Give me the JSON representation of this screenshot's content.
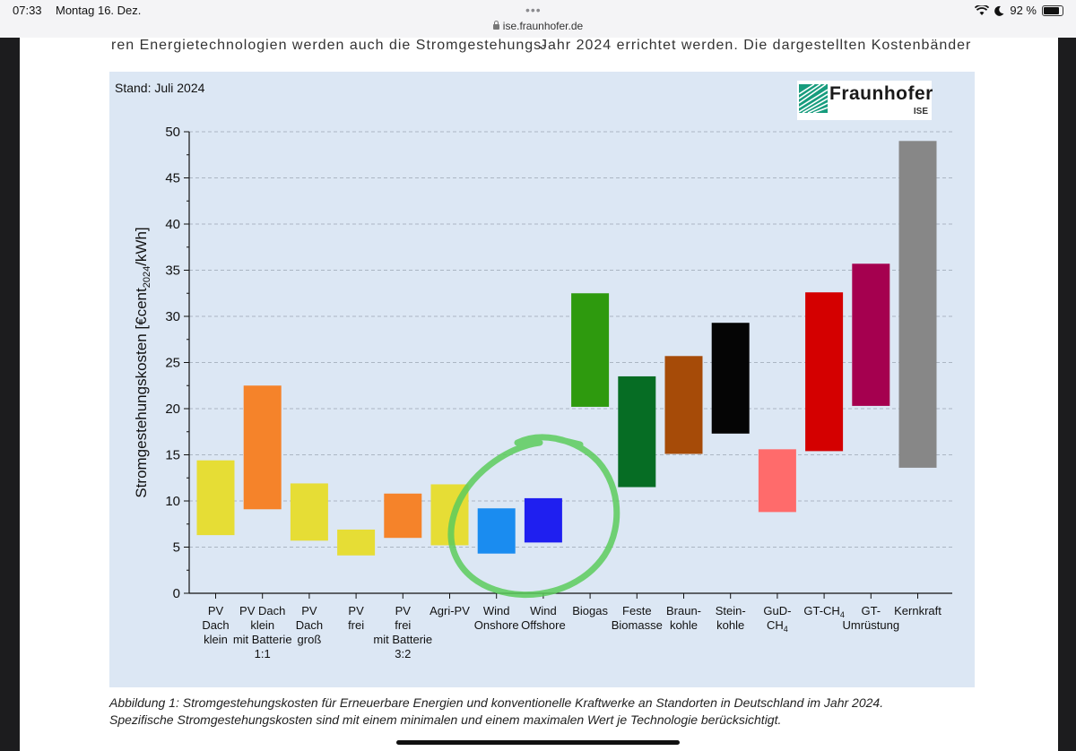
{
  "status_bar": {
    "time": "07:33",
    "date": "Montag 16. Dez.",
    "url": "ise.fraunhofer.de",
    "battery": "92 %",
    "dots": "•••"
  },
  "page": {
    "text_snippet_left": "ren Energietechnologien werden auch die Stromgestehungs-",
    "text_snippet_right": "Jahr 2024 errichtet werden. Die dargestellten Kostenbänder",
    "caption_line1": "Abbildung 1: Stromgestehungskosten für Erneuerbare Energien und konventionelle Kraftwerke an Standorten in Deutschland im Jahr 2024.",
    "caption_line2": "Spezifische Stromgestehungskosten sind mit einem minimalen und einem maximalen Wert je Technologie berücksichtigt."
  },
  "chart_header": {
    "stand": "Stand: Juli 2024",
    "logo_name": "Fraunhofer",
    "logo_sub": "ISE"
  },
  "chart_data": {
    "type": "bar",
    "subtype": "floating-range",
    "title": "",
    "ylabel": "Stromgestehungskosten [€cent2024/kWh]",
    "ylabel_parts": {
      "main": "Stromgestehungskosten [€cent",
      "sub": "2024",
      "end": "/kWh]"
    },
    "xlabel": "",
    "ylim": [
      0,
      50
    ],
    "yticks": [
      0,
      5,
      10,
      15,
      20,
      25,
      30,
      35,
      40,
      45,
      50
    ],
    "grid": true,
    "categories": [
      {
        "label": [
          "PV",
          "Dach",
          "klein"
        ],
        "min": 6.3,
        "max": 14.4,
        "color": "#e6dd35"
      },
      {
        "label": [
          "PV Dach",
          "klein",
          "mit Batterie",
          "1:1"
        ],
        "min": 9.1,
        "max": 22.5,
        "color": "#f5832a"
      },
      {
        "label": [
          "PV",
          "Dach",
          "groß"
        ],
        "min": 5.7,
        "max": 11.9,
        "color": "#e6dd35"
      },
      {
        "label": [
          "PV",
          "frei"
        ],
        "min": 4.1,
        "max": 6.9,
        "color": "#e6dd35"
      },
      {
        "label": [
          "PV",
          "frei",
          "mit Batterie",
          "3:2"
        ],
        "min": 6.0,
        "max": 10.8,
        "color": "#f5832a"
      },
      {
        "label": [
          "Agri-PV"
        ],
        "min": 5.2,
        "max": 11.8,
        "color": "#e6dd35"
      },
      {
        "label": [
          "Wind",
          "Onshore"
        ],
        "min": 4.3,
        "max": 9.2,
        "color": "#1a8cf0"
      },
      {
        "label": [
          "Wind",
          "Offshore"
        ],
        "min": 5.5,
        "max": 10.3,
        "color": "#1f1ff0"
      },
      {
        "label": [
          "Biogas"
        ],
        "min": 20.2,
        "max": 32.5,
        "color": "#2e9a0e"
      },
      {
        "label": [
          "Feste",
          "Biomasse"
        ],
        "min": 11.5,
        "max": 23.5,
        "color": "#066d24"
      },
      {
        "label": [
          "Braun-",
          "kohle"
        ],
        "min": 15.1,
        "max": 25.7,
        "color": "#a64b08"
      },
      {
        "label": [
          "Stein-",
          "kohle"
        ],
        "min": 17.3,
        "max": 29.3,
        "color": "#050505"
      },
      {
        "label": [
          "GuD-",
          "CH4"
        ],
        "min": 8.8,
        "max": 15.6,
        "color": "#ff6b6b"
      },
      {
        "label": [
          "GT-CH4"
        ],
        "min": 15.4,
        "max": 32.6,
        "color": "#d40000"
      },
      {
        "label": [
          "GT-",
          "Umrüstung"
        ],
        "min": 20.3,
        "max": 35.7,
        "color": "#a5004f"
      },
      {
        "label": [
          "Kernkraft"
        ],
        "min": 13.6,
        "max": 49.0,
        "color": "#878787"
      }
    ],
    "annotation": {
      "type": "hand-drawn circle",
      "target": [
        "Wind Onshore",
        "Wind Offshore"
      ],
      "color": "#5ccb5c"
    }
  }
}
